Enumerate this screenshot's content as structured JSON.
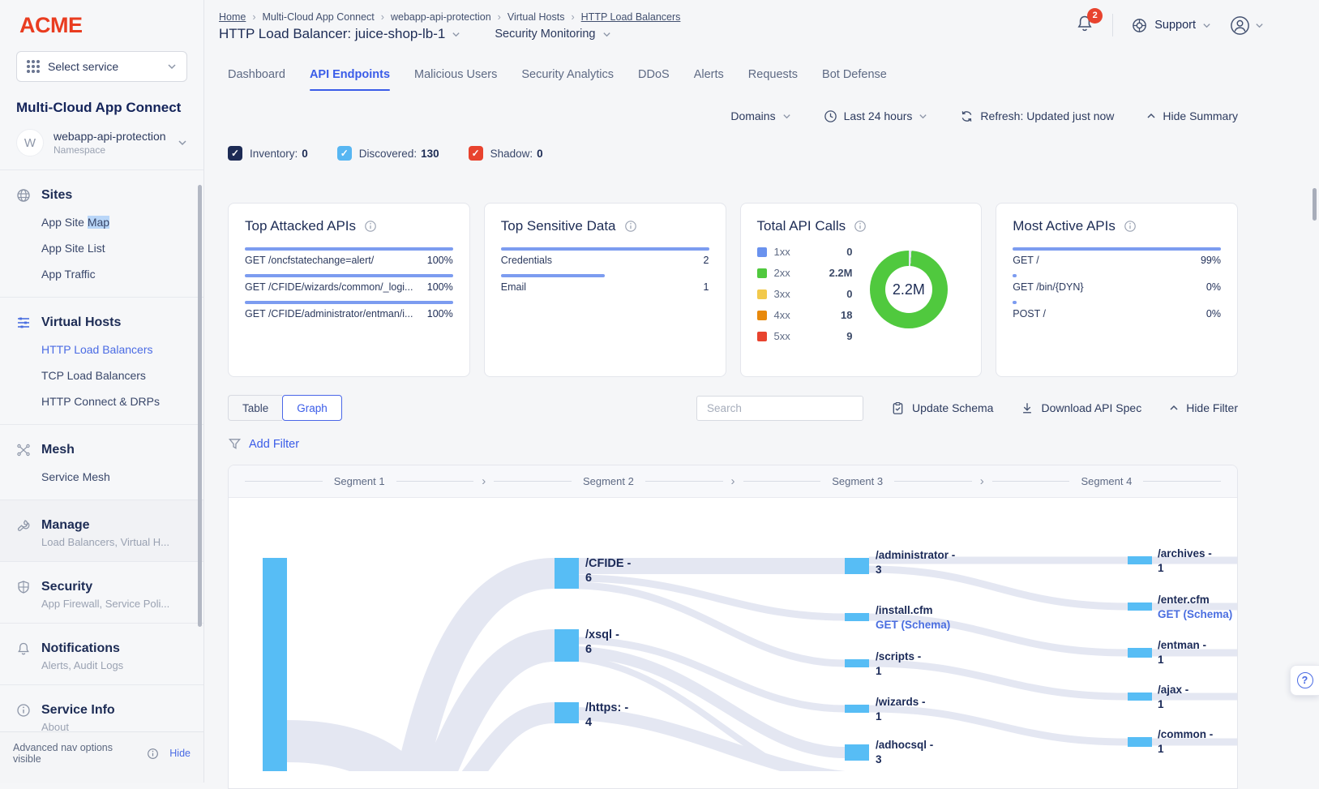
{
  "sidebar": {
    "logo": "ACME",
    "select_service": "Select service",
    "product": "Multi-Cloud App Connect",
    "namespace": {
      "initial": "W",
      "name": "webapp-api-protection",
      "type": "Namespace"
    },
    "sites": {
      "title": "Sites",
      "map_pre": "App Site ",
      "map_hl": "Map",
      "list": "App Site List",
      "traffic": "App Traffic"
    },
    "virtual_hosts": {
      "title": "Virtual Hosts",
      "items": [
        "HTTP Load Balancers",
        "TCP Load Balancers",
        "HTTP Connect & DRPs"
      ]
    },
    "mesh": {
      "title": "Mesh",
      "items": [
        "Service Mesh"
      ]
    },
    "manage": {
      "title": "Manage",
      "subtitle": "Load Balancers, Virtual H..."
    },
    "security": {
      "title": "Security",
      "subtitle": "App Firewall, Service Poli..."
    },
    "notifications": {
      "title": "Notifications",
      "subtitle": "Alerts, Audit Logs"
    },
    "service_info": {
      "title": "Service Info",
      "subtitle": "About"
    },
    "footer": {
      "text": "Advanced nav options visible",
      "hide": "Hide"
    }
  },
  "header": {
    "breadcrumb": [
      "Home",
      "Multi-Cloud App Connect",
      "webapp-api-protection",
      "Virtual Hosts",
      "HTTP Load Balancers"
    ],
    "title": "HTTP Load Balancer: juice-shop-lb-1",
    "context_menu": "Security Monitoring",
    "notifications_badge": "2",
    "support": "Support"
  },
  "tabs": {
    "items": [
      "Dashboard",
      "API Endpoints",
      "Malicious Users",
      "Security Analytics",
      "DDoS",
      "Alerts",
      "Requests",
      "Bot Defense"
    ],
    "active": "API Endpoints"
  },
  "controls": {
    "domains": "Domains",
    "time_range": "Last 24 hours",
    "refresh": "Refresh: Updated just now",
    "hide_summary": "Hide Summary"
  },
  "counters": [
    {
      "label": "Inventory:",
      "value": "0",
      "color": "#1d2b55"
    },
    {
      "label": "Discovered:",
      "value": "130",
      "color": "#57b6f2"
    },
    {
      "label": "Shadow:",
      "value": "0",
      "color": "#e8432e"
    }
  ],
  "cards": {
    "top_attacked": {
      "title": "Top Attacked APIs",
      "rows": [
        {
          "label": "GET /oncfstatechange=alert/",
          "value": "100%",
          "pct": 100
        },
        {
          "label": "GET /CFIDE/wizards/common/_logi...",
          "value": "100%",
          "pct": 100
        },
        {
          "label": "GET /CFIDE/administrator/entman/i...",
          "value": "100%",
          "pct": 100
        }
      ]
    },
    "top_sensitive": {
      "title": "Top Sensitive Data",
      "rows": [
        {
          "label": "Credentials",
          "value": "2",
          "pct": 100
        },
        {
          "label": "Email",
          "value": "1",
          "pct": 50
        }
      ]
    },
    "total_api_calls": {
      "title": "Total API Calls",
      "center": "2.2M",
      "donut_color": "#50c93e",
      "legend": [
        {
          "label": "1xx",
          "value": "0",
          "color": "#6a92ee"
        },
        {
          "label": "2xx",
          "value": "2.2M",
          "color": "#50c93e"
        },
        {
          "label": "3xx",
          "value": "0",
          "color": "#f2c94c"
        },
        {
          "label": "4xx",
          "value": "18",
          "color": "#e8890c"
        },
        {
          "label": "5xx",
          "value": "9",
          "color": "#e8432e"
        }
      ]
    },
    "most_active": {
      "title": "Most Active APIs",
      "rows": [
        {
          "label": "GET /",
          "value": "99%",
          "pct": 100
        },
        {
          "label": "GET /bin/{DYN}",
          "value": "0%",
          "pct": 2
        },
        {
          "label": "POST /",
          "value": "0%",
          "pct": 2
        }
      ]
    }
  },
  "toolbar": {
    "table": "Table",
    "graph": "Graph",
    "search_placeholder": "Search",
    "update_schema": "Update Schema",
    "download": "Download API Spec",
    "hide_filter": "Hide Filter",
    "add_filter": "Add Filter"
  },
  "graph": {
    "segments": [
      "Segment 1",
      "Segment 2",
      "Segment 3",
      "Segment 4"
    ],
    "node_color": "#57bdf5",
    "col2": [
      {
        "name": "/CFIDE -",
        "value": "6"
      },
      {
        "name": "/xsql -",
        "value": "6"
      },
      {
        "name": "/https: -",
        "value": "4"
      }
    ],
    "col3": [
      {
        "name": "/administrator -",
        "value": "3"
      },
      {
        "name": "/install.cfm",
        "link": "GET (Schema)"
      },
      {
        "name": "/scripts -",
        "value": "1"
      },
      {
        "name": "/wizards -",
        "value": "1"
      },
      {
        "name": "/adhocsql -",
        "value": "3"
      }
    ],
    "col4": [
      {
        "name": "/archives -",
        "value": "1"
      },
      {
        "name": "/enter.cfm",
        "link": "GET (Schema)"
      },
      {
        "name": "/entman -",
        "value": "1"
      },
      {
        "name": "/ajax -",
        "value": "1"
      },
      {
        "name": "/common -",
        "value": "1"
      }
    ]
  }
}
